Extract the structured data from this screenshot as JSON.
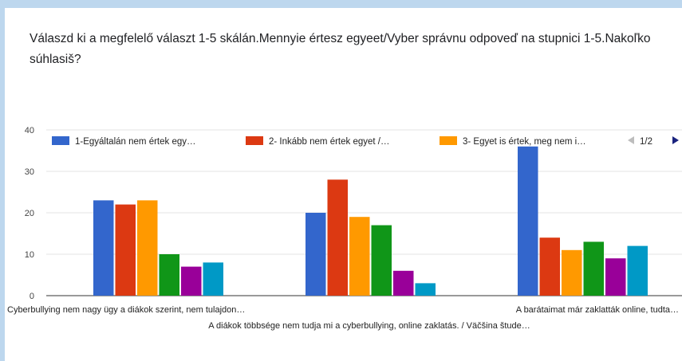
{
  "chart_data": {
    "type": "bar",
    "title": "Válaszd ki a megfelelő választ 1-5 skálán.Mennyie értesz egyeet/Vyber správnu odpoveď na stupnici 1-5.Nakoľko súhlasiš?",
    "categories": [
      "Cyberbullying nem nagy ügy a diákok szerint, nem tulajdon…",
      "A diákok többsége nem tudja mi a cyberbullying, online zaklatás. / Väčšina štude…",
      "A barátaimat már zaklatták online, tudta…"
    ],
    "series": [
      {
        "name": "1-Egyáltalán nem értek egy…",
        "color": "#3366cc",
        "values": [
          23,
          20,
          36
        ]
      },
      {
        "name": "2- Inkább nem értek egyet /…",
        "color": "#dc3912",
        "values": [
          22,
          28,
          14
        ]
      },
      {
        "name": "3- Egyet is értek, meg nem i…",
        "color": "#ff9900",
        "values": [
          23,
          19,
          11
        ]
      },
      {
        "color": "#109618",
        "values": [
          10,
          17,
          13
        ]
      },
      {
        "color": "#990099",
        "values": [
          7,
          6,
          9
        ]
      },
      {
        "color": "#0099c6",
        "values": [
          8,
          3,
          12
        ]
      }
    ],
    "yticks": [
      0,
      10,
      20,
      30,
      40
    ],
    "ylim": [
      0,
      40
    ],
    "legend": {
      "position": "top",
      "page": "1/2"
    }
  }
}
